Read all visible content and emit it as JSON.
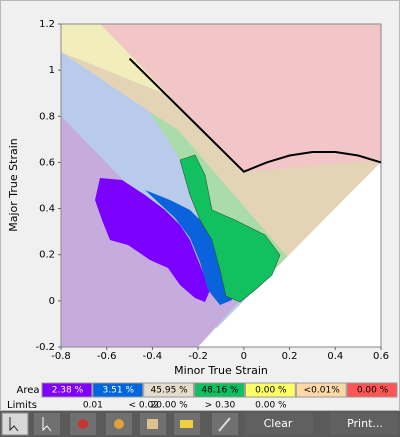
{
  "chart_data": {
    "type": "line",
    "x_label": "Minor True Strain",
    "y_label": "Major True Strain",
    "xlim": [
      -0.8,
      0.6
    ],
    "ylim": [
      -0.2,
      1.2
    ],
    "xticks": [
      -0.8,
      -0.6,
      -0.4,
      -0.2,
      0,
      0.2,
      0.4,
      0.6
    ],
    "yticks": [
      -0.2,
      0,
      0.2,
      0.4,
      0.6,
      0.8,
      1,
      1.2
    ],
    "x": [
      -0.5,
      0,
      0.1,
      0.2,
      0.3,
      0.4,
      0.5,
      0.6
    ],
    "values": [
      1.05,
      0.56,
      0.6,
      0.63,
      0.645,
      0.645,
      0.63,
      0.6
    ],
    "color": "#000000"
  },
  "legend": {
    "area_label": "Area",
    "areas": [
      {
        "label": "2.38 %",
        "color": "#8000ff"
      },
      {
        "label": "3.51 %",
        "color": "#0066dd"
      },
      {
        "label": "45.95 %",
        "color": "#e6dccb"
      },
      {
        "label": "48.16 %",
        "color": "#10c060"
      },
      {
        "label": "0.00 %",
        "color": "#ffff66"
      },
      {
        "label": "<0.01%",
        "color": "#ffd8a8"
      },
      {
        "label": "0.00 %",
        "color": "#ff5555"
      }
    ],
    "limits_label": "Limits",
    "limits": [
      "0.01",
      "< 0.02",
      "20.00 %",
      "> 0.30",
      "0.00 %"
    ]
  },
  "toolbar": {
    "clear": "Clear",
    "print": "Print..."
  }
}
